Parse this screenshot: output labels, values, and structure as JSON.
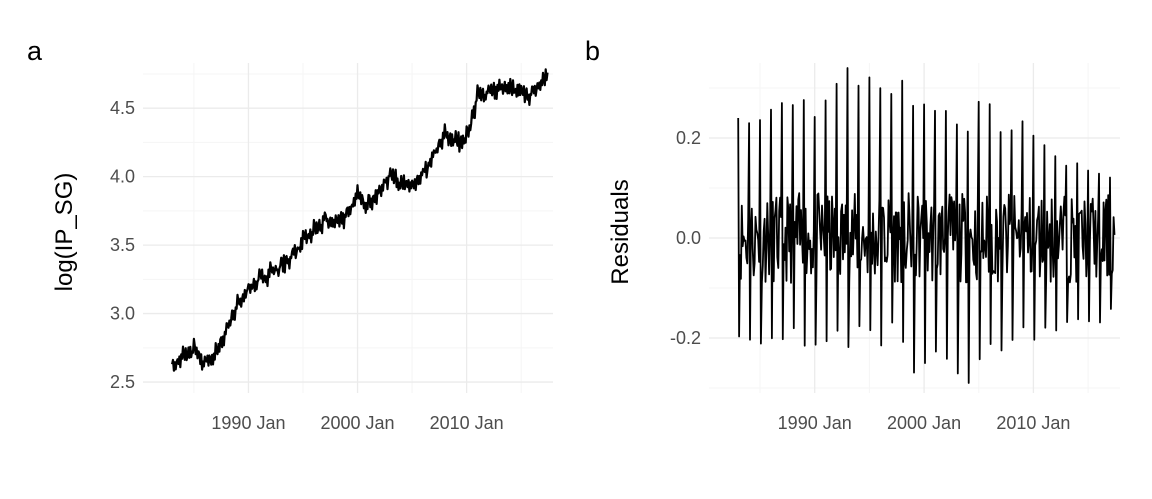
{
  "colors": {
    "grid_major": "#ebebeb",
    "grid_minor": "#f5f5f5",
    "line": "#000000",
    "tick_text": "#4d4d4d"
  },
  "chart_data": [
    {
      "panel": "a",
      "type": "line",
      "title": "",
      "xlabel": "",
      "ylabel": "log(IP_SG)",
      "x_tick_labels": [
        "1990 Jan",
        "2000 Jan",
        "2010 Jan"
      ],
      "x_tick_values": [
        "1990-01",
        "2000-01",
        "2010-01"
      ],
      "y_tick_labels": [
        "2.5",
        "3.0",
        "3.5",
        "4.0",
        "4.5"
      ],
      "y_tick_values": [
        2.5,
        3.0,
        3.5,
        4.0,
        4.5
      ],
      "xlim": [
        "1980-05",
        "2017-12"
      ],
      "ylim": [
        2.42,
        4.83
      ],
      "grid": true,
      "series_note": "monthly series, values approximated from the plot",
      "x": [
        "1983-01",
        "1984-01",
        "1985-01",
        "1986-01",
        "1987-01",
        "1988-01",
        "1989-01",
        "1990-01",
        "1991-01",
        "1992-01",
        "1993-01",
        "1994-01",
        "1995-01",
        "1996-01",
        "1997-01",
        "1998-01",
        "1999-01",
        "2000-01",
        "2001-01",
        "2002-01",
        "2003-01",
        "2004-01",
        "2005-01",
        "2006-01",
        "2007-01",
        "2008-01",
        "2009-01",
        "2010-01",
        "2011-01",
        "2012-01",
        "2013-01",
        "2014-01",
        "2015-01",
        "2016-01",
        "2017-01",
        "2017-06"
      ],
      "y": [
        2.6,
        2.68,
        2.73,
        2.63,
        2.7,
        2.88,
        3.05,
        3.18,
        3.24,
        3.3,
        3.34,
        3.42,
        3.52,
        3.6,
        3.67,
        3.66,
        3.72,
        3.85,
        3.8,
        3.88,
        4.02,
        3.95,
        3.92,
        4.0,
        4.15,
        4.3,
        4.25,
        4.28,
        4.58,
        4.62,
        4.63,
        4.64,
        4.62,
        4.6,
        4.68,
        4.76
      ]
    },
    {
      "panel": "b",
      "type": "line",
      "title": "",
      "xlabel": "",
      "ylabel": "Residuals",
      "x_tick_labels": [
        "1990 Jan",
        "2000 Jan",
        "2010 Jan"
      ],
      "x_tick_values": [
        "1990-01",
        "2000-01",
        "2010-01"
      ],
      "y_tick_labels": [
        "-0.2",
        "0.0",
        "0.2"
      ],
      "y_tick_values": [
        -0.2,
        0.0,
        0.2
      ],
      "xlim": [
        "1980-05",
        "2017-12"
      ],
      "ylim": [
        -0.31,
        0.35
      ],
      "grid": true,
      "series_note": "monthly residuals oscillating around zero, roughly within -0.29 to 0.34",
      "x_start": "1983-01",
      "x_end": "2017-06",
      "peaks": [
        0.24,
        0.26,
        0.27,
        0.28,
        0.32,
        0.34,
        0.34,
        0.33,
        0.3,
        0.27,
        0.25,
        0.31,
        0.24,
        0.24,
        0.19,
        0.15,
        0.14
      ],
      "troughs": [
        -0.24,
        -0.23,
        -0.22,
        -0.22,
        -0.23,
        -0.22,
        -0.23,
        -0.21,
        -0.27,
        -0.25,
        -0.29,
        -0.25,
        -0.23,
        -0.22,
        -0.19,
        -0.18,
        -0.17
      ]
    }
  ]
}
